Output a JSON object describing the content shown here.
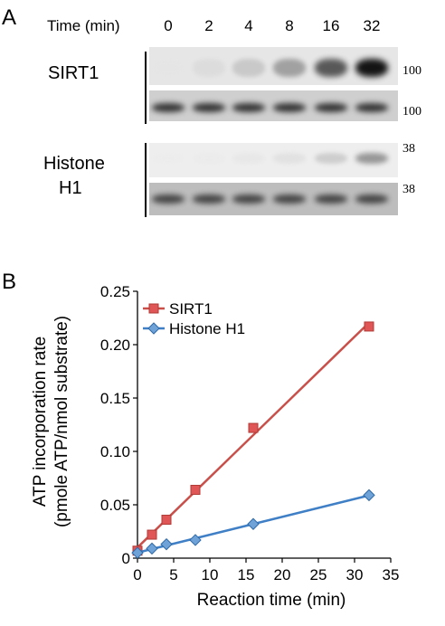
{
  "panel_a": {
    "letter": "A",
    "time_header": "Time (min)",
    "time_points": [
      "0",
      "2",
      "4",
      "8",
      "16",
      "32"
    ],
    "rows": [
      {
        "label": "SIRT1",
        "mw_top": "100",
        "mw_bottom": "100"
      },
      {
        "label": "Histone",
        "label2": "H1",
        "mw_top": "38",
        "mw_bottom": "38"
      }
    ],
    "band_intensity": {
      "sirt1_phospho": [
        0.02,
        0.15,
        0.3,
        0.5,
        0.75,
        1.0
      ],
      "sirt1_loading": [
        0.85,
        0.85,
        0.85,
        0.85,
        0.85,
        0.85
      ],
      "h1_phospho": [
        0.0,
        0.03,
        0.08,
        0.15,
        0.3,
        0.55
      ],
      "h1_loading": [
        0.8,
        0.8,
        0.8,
        0.8,
        0.8,
        0.8
      ]
    }
  },
  "panel_b": {
    "letter": "B"
  },
  "chart_data": {
    "type": "line",
    "xlabel": "Reaction time (min)",
    "ylabel": "ATP incorporation rate",
    "ylabel2": "(pmole ATP/nmol substrate)",
    "xlim": [
      0,
      35
    ],
    "ylim": [
      0,
      0.25
    ],
    "xticks": [
      "0",
      "5",
      "10",
      "15",
      "20",
      "25",
      "30",
      "35"
    ],
    "yticks": [
      "0",
      "0.05",
      "0.10",
      "0.15",
      "0.20",
      "0.25"
    ],
    "grid": false,
    "legend_position": "top-left",
    "series": [
      {
        "name": "SIRT1",
        "marker": "square",
        "color": "#e05555",
        "line_color": "#c9504a",
        "x": [
          0,
          2,
          4,
          8,
          16,
          32
        ],
        "y": [
          0.007,
          0.022,
          0.036,
          0.064,
          0.122,
          0.217
        ]
      },
      {
        "name": "Histone H1",
        "marker": "diamond",
        "color": "#6fa3d8",
        "line_color": "#3f7fc6",
        "x": [
          0,
          2,
          4,
          8,
          16,
          32
        ],
        "y": [
          0.005,
          0.009,
          0.013,
          0.017,
          0.032,
          0.059
        ]
      }
    ]
  }
}
